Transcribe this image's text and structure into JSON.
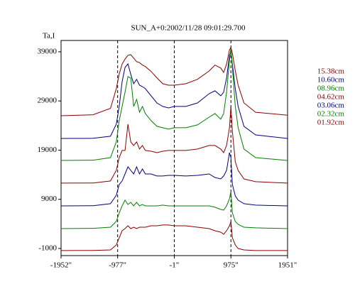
{
  "chart_data": {
    "type": "line",
    "title": "SUN_A+0:2002/11/28 09:01:29.700",
    "ylabel": "Ta,I",
    "x": [
      -1952,
      -1400,
      -1100,
      -1000,
      -950,
      -900,
      -850,
      -800,
      -750,
      -700,
      -650,
      -600,
      -550,
      -500,
      -400,
      -300,
      -200,
      -100,
      0,
      200,
      400,
      600,
      700,
      800,
      850,
      900,
      950,
      975,
      1000,
      1050,
      1100,
      1200,
      1400,
      1951
    ],
    "series": [
      {
        "name": "15.38cm",
        "color": "#8b0000",
        "values": [
          26000,
          26200,
          27500,
          31500,
          34500,
          36500,
          37500,
          38300,
          38400,
          37700,
          37000,
          36800,
          36300,
          36000,
          35000,
          33700,
          32500,
          32200,
          32200,
          32500,
          33400,
          35100,
          36300,
          35700,
          34800,
          36500,
          39400,
          39900,
          38700,
          35100,
          32200,
          28600,
          26700,
          26100
        ]
      },
      {
        "name": "10.60cm",
        "color": "#000080",
        "values": [
          21380,
          21400,
          21820,
          24270,
          27880,
          32930,
          35820,
          36540,
          34400,
          32500,
          33370,
          32210,
          31920,
          31490,
          30050,
          28600,
          27880,
          27590,
          27880,
          27880,
          28600,
          30480,
          31060,
          30050,
          30770,
          33660,
          38280,
          39140,
          36540,
          31490,
          27880,
          23840,
          22100,
          21380
        ]
      },
      {
        "name": "08.96cm",
        "color": "#008000",
        "values": [
          16900,
          16950,
          17480,
          20660,
          25000,
          27880,
          30770,
          33950,
          33660,
          27880,
          29320,
          26720,
          27880,
          26440,
          25000,
          23840,
          23550,
          23260,
          23550,
          23550,
          24130,
          25710,
          26440,
          25280,
          26440,
          30770,
          37270,
          39720,
          35820,
          27880,
          23550,
          19220,
          17480,
          16900
        ]
      },
      {
        "name": "04.62cm",
        "color": "#8b0000",
        "values": [
          12290,
          12300,
          12720,
          14880,
          17480,
          18930,
          18930,
          24270,
          20660,
          19940,
          20660,
          19220,
          19940,
          18930,
          18780,
          18490,
          18780,
          18930,
          18930,
          18930,
          19220,
          19940,
          19940,
          19220,
          18490,
          19940,
          23550,
          27880,
          22830,
          16620,
          14880,
          13150,
          12580,
          12290
        ]
      },
      {
        "name": "03.06cm",
        "color": "#000080",
        "values": [
          7660,
          7700,
          8100,
          9830,
          12000,
          12720,
          14160,
          15610,
          14880,
          14160,
          15610,
          14160,
          15170,
          14160,
          14160,
          13730,
          13730,
          13870,
          13870,
          13730,
          13870,
          14160,
          13440,
          13150,
          13730,
          14880,
          18490,
          17480,
          12000,
          9690,
          8820,
          8100,
          7810,
          7660
        ]
      },
      {
        "name": "02.32cm",
        "color": "#008000",
        "values": [
          3040,
          3100,
          3330,
          4490,
          6220,
          7660,
          8820,
          7950,
          8390,
          7660,
          8390,
          7660,
          7950,
          7660,
          7660,
          7660,
          7810,
          7660,
          7660,
          7660,
          7660,
          7660,
          7380,
          6940,
          6800,
          7660,
          9110,
          10550,
          6220,
          4490,
          3900,
          3330,
          3190,
          3040
        ]
      },
      {
        "name": "01.92cm",
        "color": "#8b0000",
        "values": [
          -1430,
          -1400,
          -1290,
          -280,
          1170,
          2610,
          3040,
          3620,
          3040,
          3330,
          3040,
          3330,
          3330,
          3330,
          3620,
          3620,
          3770,
          3770,
          3620,
          3620,
          3330,
          3040,
          2610,
          2320,
          1890,
          2610,
          3620,
          4490,
          1170,
          -280,
          -1000,
          -1290,
          -1430,
          -1430
        ]
      }
    ],
    "xlim": [
      -1952,
      1951
    ],
    "xticks": [
      {
        "value": -1952,
        "label": "-1952\""
      },
      {
        "value": -977,
        "label": "-977\""
      },
      {
        "value": -1,
        "label": "-1\""
      },
      {
        "value": 975,
        "label": "975\""
      },
      {
        "value": 1951,
        "label": "1951\""
      }
    ],
    "vlines": [
      -977,
      -1,
      975
    ],
    "ylim": [
      -2450,
      41300
    ],
    "yticks": [
      -1000,
      9000,
      19000,
      29000,
      39000
    ]
  }
}
